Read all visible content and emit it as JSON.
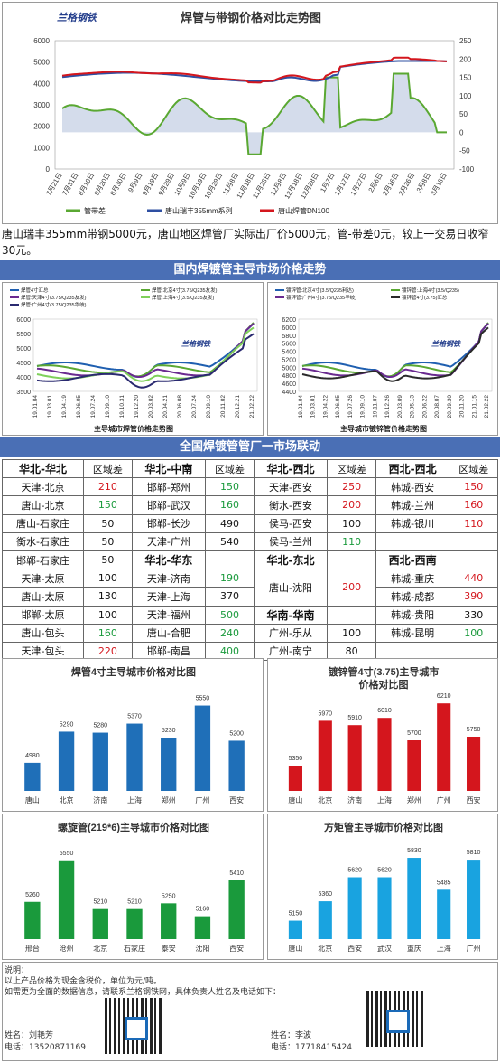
{
  "top_chart": {
    "title": "焊管与带钢价格对比走势图",
    "logo_text": "兰格钢铁",
    "y_left_ticks": [
      "0",
      "1000",
      "2000",
      "3000",
      "4000",
      "5000",
      "6000"
    ],
    "y_right_ticks": [
      "-100",
      "-50",
      "0",
      "50",
      "100",
      "150",
      "200",
      "250"
    ],
    "x_ticks": [
      "7月21日",
      "7月31日",
      "8月10日",
      "8月20日",
      "8月30日",
      "9月9日",
      "9月19日",
      "9月29日",
      "10月9日",
      "10月19日",
      "10月29日",
      "11月8日",
      "11月18日",
      "11月28日",
      "12月8日",
      "12月18日",
      "12月28日",
      "1月7日",
      "1月17日",
      "1月27日",
      "2月6日",
      "2月16日",
      "2月26日",
      "3月8日",
      "3月18日"
    ],
    "legend": [
      "管带差",
      "唐山瑞丰355mm系列",
      "唐山焊管DN100"
    ],
    "colors": {
      "spread": "#5aa832",
      "strip": "#2e4fa2",
      "pipe": "#d4161d"
    }
  },
  "commentary": "唐山瑞丰355mm带钢5000元，唐山地区焊管厂实际出厂价5000元，管-带差0元，较上一交易日收窄30元。",
  "section1_title": "国内焊镀管主导市场价格走势",
  "left_mini": {
    "legend": [
      "焊管4寸汇总",
      "焊管:北京4寸(3.75/Q235友发)",
      "焊管:天津4寸(3.75/Q235友发)",
      "焊管:上海4寸(3.5/Q235友发)",
      "焊管:广州4寸(3.75/Q235华岐)"
    ],
    "y_ticks": [
      "3500",
      "4000",
      "4500",
      "5000",
      "5500",
      "6000"
    ],
    "x_ticks": [
      "19.01.04",
      "19.03.01",
      "19.04.19",
      "19.06.05",
      "19.07.24",
      "19.09.10",
      "19.10.31",
      "19.12.20",
      "20.03.02",
      "20.04.21",
      "20.06.08",
      "20.07.24",
      "20.09.10",
      "20.11.02",
      "20.12.21",
      "21.02.22"
    ],
    "caption": "主导城市焊管价格走势图",
    "logo_text": "兰格钢铁"
  },
  "right_mini": {
    "legend": [
      "镀锌管:北京4寸(3.5/Q235利达)",
      "镀锌管:上海4寸(3.5/Q235)",
      "镀锌管:广州4寸(3.75/Q235华岐)",
      "镀锌管4寸(3.75)汇总"
    ],
    "y_ticks": [
      "4400",
      "4600",
      "4800",
      "5000",
      "5200",
      "5400",
      "5600",
      "5800",
      "6000",
      "6200"
    ],
    "x_ticks": [
      "19.01.04",
      "19.03.01",
      "19.04.22",
      "19.06.05",
      "19.07.26",
      "19.09.10",
      "19.11.07",
      "19.12.26",
      "20.03.09",
      "20.05.13",
      "20.06.22",
      "20.08.07",
      "20.09.30",
      "20.11.20",
      "21.01.15",
      "21.02.22"
    ],
    "caption": "主导城市镀锌管价格走势图",
    "logo_text": "兰格钢铁"
  },
  "section2_title": "全国焊镀管管厂一市场联动",
  "table": {
    "rows": [
      [
        {
          "t": "华北-华北",
          "c": "hdr"
        },
        {
          "t": "区域差",
          "c": "hdr0"
        },
        {
          "t": "华北-中南",
          "c": "hdr"
        },
        {
          "t": "区域差",
          "c": "hdr0"
        },
        {
          "t": "华北-西北",
          "c": "hdr"
        },
        {
          "t": "区域差",
          "c": "hdr0"
        },
        {
          "t": "西北-西北",
          "c": "hdr"
        },
        {
          "t": "区域差",
          "c": "hdr0"
        }
      ],
      [
        {
          "t": "天津-北京"
        },
        {
          "t": "210",
          "c": "red"
        },
        {
          "t": "邯郸-郑州"
        },
        {
          "t": "150",
          "c": "green"
        },
        {
          "t": "天津-西安"
        },
        {
          "t": "250",
          "c": "red"
        },
        {
          "t": "韩城-西安"
        },
        {
          "t": "150",
          "c": "red"
        }
      ],
      [
        {
          "t": "唐山-北京"
        },
        {
          "t": "150",
          "c": "green"
        },
        {
          "t": "邯郸-武汉"
        },
        {
          "t": "160",
          "c": "green"
        },
        {
          "t": "衡水-西安"
        },
        {
          "t": "200",
          "c": "red"
        },
        {
          "t": "韩城-兰州"
        },
        {
          "t": "160",
          "c": "red"
        }
      ],
      [
        {
          "t": "唐山-石家庄"
        },
        {
          "t": "50"
        },
        {
          "t": "邯郸-长沙"
        },
        {
          "t": "490"
        },
        {
          "t": "侯马-西安"
        },
        {
          "t": "100"
        },
        {
          "t": "韩城-银川"
        },
        {
          "t": "110",
          "c": "red"
        }
      ],
      [
        {
          "t": "衡水-石家庄"
        },
        {
          "t": "50"
        },
        {
          "t": "天津-广州"
        },
        {
          "t": "540"
        },
        {
          "t": "侯马-兰州"
        },
        {
          "t": "110",
          "c": "green"
        },
        {
          "t": ""
        },
        {
          "t": ""
        }
      ],
      [
        {
          "t": "邯郸-石家庄"
        },
        {
          "t": "50"
        },
        {
          "t": "华北-华东",
          "c": "hdr"
        },
        {
          "t": ""
        },
        {
          "t": "华北-东北",
          "c": "hdr"
        },
        {
          "t": ""
        },
        {
          "t": "西北-西南",
          "c": "hdr"
        },
        {
          "t": ""
        }
      ],
      [
        {
          "t": "天津-太原"
        },
        {
          "t": "100"
        },
        {
          "t": "天津-济南"
        },
        {
          "t": "190",
          "c": "green"
        },
        {
          "t": "唐山-沈阳",
          "rs": 2
        },
        {
          "t": "200",
          "c": "red",
          "rs": 2
        },
        {
          "t": "韩城-重庆"
        },
        {
          "t": "440",
          "c": "red"
        }
      ],
      [
        {
          "t": "唐山-太原"
        },
        {
          "t": "130"
        },
        {
          "t": "天津-上海"
        },
        {
          "t": "370"
        },
        {
          "t": "韩城-成都"
        },
        {
          "t": "390",
          "c": "red"
        }
      ],
      [
        {
          "t": "邯郸-太原"
        },
        {
          "t": "100"
        },
        {
          "t": "天津-福州"
        },
        {
          "t": "500",
          "c": "green"
        },
        {
          "t": "华南-华南",
          "c": "hdr"
        },
        {
          "t": ""
        },
        {
          "t": "韩城-贵阳"
        },
        {
          "t": "330"
        }
      ],
      [
        {
          "t": "唐山-包头"
        },
        {
          "t": "160",
          "c": "green"
        },
        {
          "t": "唐山-合肥"
        },
        {
          "t": "240",
          "c": "green"
        },
        {
          "t": "广州-乐从"
        },
        {
          "t": "100"
        },
        {
          "t": "韩城-昆明"
        },
        {
          "t": "100",
          "c": "green"
        }
      ],
      [
        {
          "t": "天津-包头"
        },
        {
          "t": "220",
          "c": "red"
        },
        {
          "t": "邯郸-南昌"
        },
        {
          "t": "400",
          "c": "green"
        },
        {
          "t": "广州-南宁"
        },
        {
          "t": "80"
        },
        {
          "t": ""
        },
        {
          "t": ""
        }
      ]
    ]
  },
  "chart_data": [
    {
      "type": "bar",
      "title": "焊管4寸主导城市价格对比图",
      "categories": [
        "唐山",
        "北京",
        "济南",
        "上海",
        "郑州",
        "广州",
        "西安"
      ],
      "values": [
        4980,
        5290,
        5280,
        5370,
        5230,
        5550,
        5200
      ],
      "color": "#1f6fb8",
      "ylim": [
        4700,
        5600
      ]
    },
    {
      "type": "bar",
      "title": "镀锌管4寸(3.75)主导城市价格对比图",
      "categories": [
        "唐山",
        "北京",
        "济南",
        "上海",
        "郑州",
        "广州",
        "西安"
      ],
      "values": [
        5350,
        5970,
        5910,
        6010,
        5700,
        6210,
        5750
      ],
      "color": "#d4161d",
      "ylim": [
        5000,
        6250
      ]
    },
    {
      "type": "bar",
      "title": "螺旋管(219*6)主导城市价格对比图",
      "categories": [
        "邢台",
        "沧州",
        "北京",
        "石家庄",
        "泰安",
        "沈阳",
        "西安"
      ],
      "values": [
        5260,
        5550,
        5210,
        5210,
        5250,
        5160,
        5410
      ],
      "color": "#1a9a3c",
      "ylim": [
        5000,
        5580
      ]
    },
    {
      "type": "bar",
      "title": "方矩管主导城市价格对比图",
      "categories": [
        "唐山",
        "北京",
        "西安",
        "武汉",
        "重庆",
        "上海",
        "广州"
      ],
      "values": [
        5150,
        5360,
        5620,
        5620,
        5830,
        5485,
        5810
      ],
      "color": "#19a3e0",
      "ylim": [
        4950,
        5850
      ]
    }
  ],
  "footer": {
    "note_label": "说明：",
    "line1": "以上产品价格为现金含税价，单位为元/吨。",
    "line2": "如需更为全面的数据信息，请联系兰格钢铁网，具体负责人姓名及电话如下：",
    "contact1_name": "姓名：刘艳芳",
    "contact1_phone": "电话：13520871169",
    "contact2_name": "姓名：李波",
    "contact2_phone": "电话：17718415424"
  }
}
